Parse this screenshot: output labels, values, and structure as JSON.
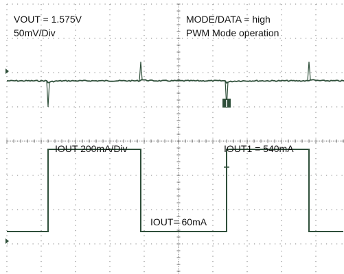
{
  "annotations": {
    "vout": "VOUT = 1.575V",
    "vout_scale": "50mV/Div",
    "mode": "MODE/DATA = high",
    "operation": "PWM Mode operation",
    "iout_scale": "IOUT 200mA/Div",
    "iout_high": "IOUT1 = 540mA",
    "iout_low": "IOUT= 60mA"
  },
  "colors": {
    "background": "#ffffff",
    "grid": "#555555",
    "trace": "#2f4f3a"
  },
  "chart_data": {
    "type": "line",
    "grid": true,
    "divisions": {
      "x": 10,
      "y": 8
    },
    "series": [
      {
        "channel": "IOUT",
        "unit": "mA",
        "per_div": 200,
        "low": 60,
        "high": 540,
        "steps": [
          {
            "t_div": 0.0,
            "value": 60
          },
          {
            "t_div": 1.2,
            "value": 540
          },
          {
            "t_div": 3.9,
            "value": 60
          },
          {
            "t_div": 6.4,
            "value": 540
          },
          {
            "t_div": 8.8,
            "value": 60
          }
        ]
      },
      {
        "channel": "VOUT",
        "unit": "V",
        "offset": 1.575,
        "per_div": 0.05,
        "transients": [
          {
            "t_div": 1.2,
            "direction": "undershoot"
          },
          {
            "t_div": 3.9,
            "direction": "overshoot"
          },
          {
            "t_div": 6.4,
            "direction": "undershoot"
          },
          {
            "t_div": 8.8,
            "direction": "overshoot"
          }
        ]
      }
    ]
  }
}
